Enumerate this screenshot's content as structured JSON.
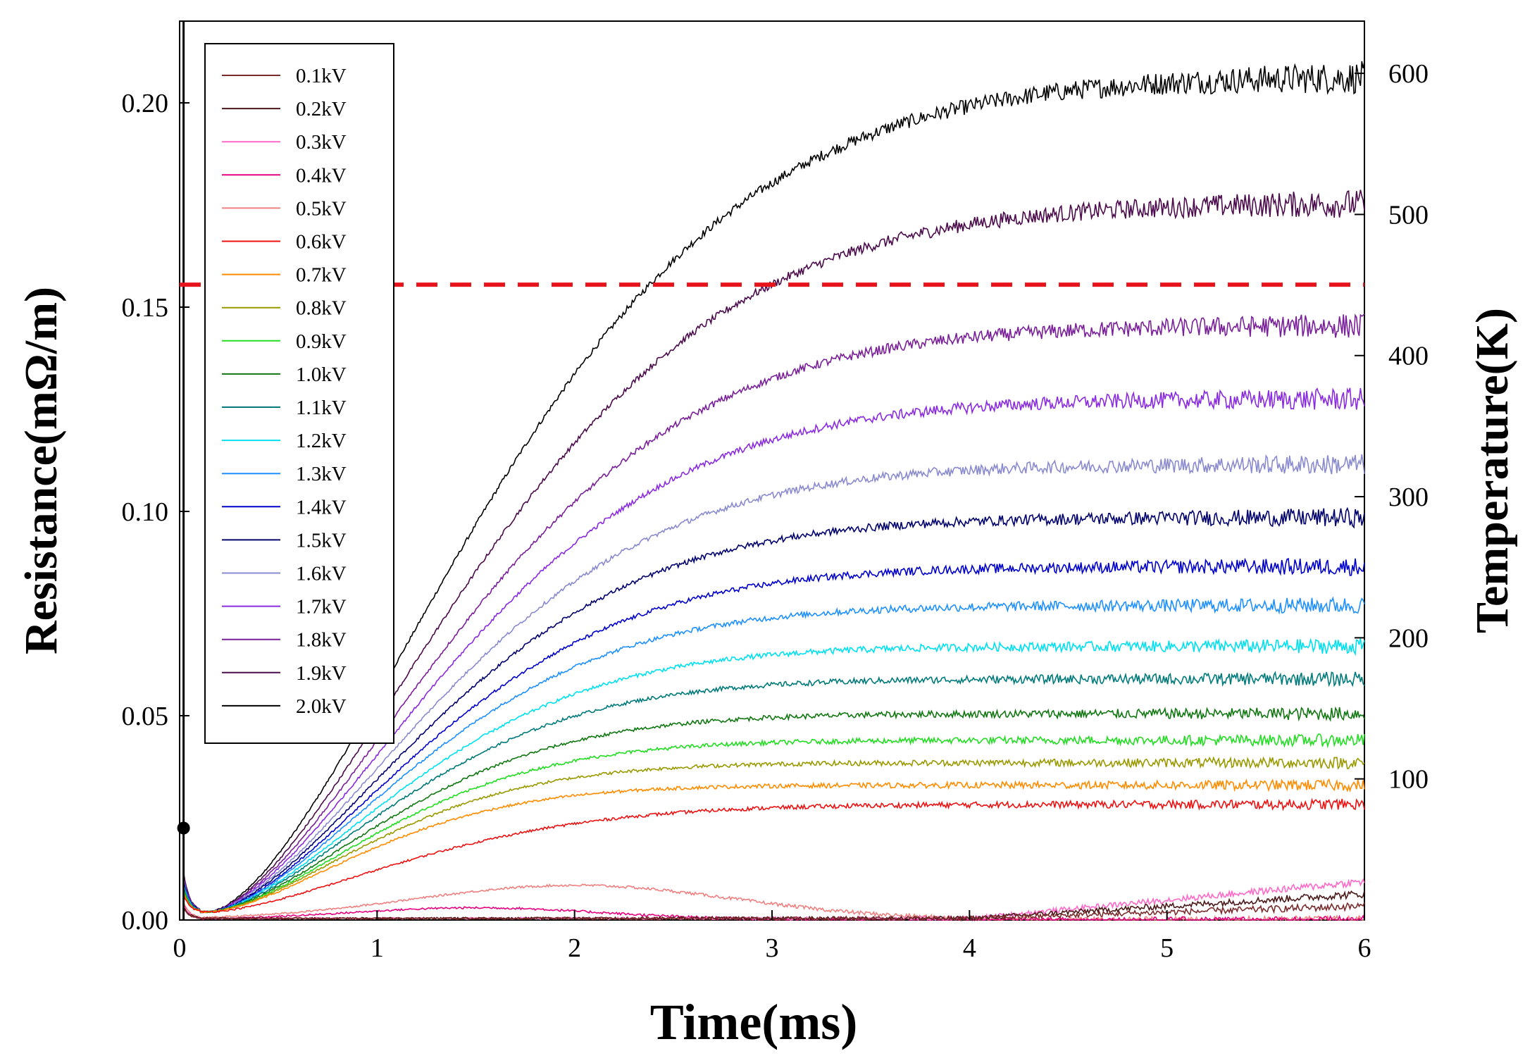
{
  "chart_data": {
    "type": "line",
    "title": "",
    "xlabel": "Time(ms)",
    "ylabel": "Resistance(mΩ/m)",
    "y2label": "Temperature(K)",
    "xlim": [
      0,
      6
    ],
    "ylim": [
      0,
      0.22
    ],
    "y2lim": [
      0,
      637
    ],
    "x_ticks": [
      "0",
      "1",
      "2",
      "3",
      "4",
      "5",
      "6"
    ],
    "y_ticks": [
      "0.00",
      "0.05",
      "0.10",
      "0.15",
      "0.20"
    ],
    "y2_ticks": [
      "100",
      "200",
      "300",
      "400",
      "500",
      "600"
    ],
    "legend_position": "top-left",
    "reference_line": {
      "y": 0.1555,
      "color": "#e8141b",
      "style": "dashed"
    },
    "series": [
      {
        "name": "0.1kV",
        "color": "#7a2c2c",
        "plateau": 0.0,
        "t": 0.0
      },
      {
        "name": "0.2kV",
        "color": "#4a1818",
        "plateau": 0.0,
        "t": 0.0
      },
      {
        "name": "0.3kV",
        "color": "#ff69c8",
        "plateau": 0.0,
        "t": 0.0
      },
      {
        "name": "0.4kV",
        "color": "#e6007e",
        "plateau": 0.003,
        "t": 1.4
      },
      {
        "name": "0.5kV",
        "color": "#f08080",
        "plateau": 0.0085,
        "t": 2.0
      },
      {
        "name": "0.6kV",
        "color": "#ee1111",
        "plateau": 0.0283,
        "t": 2.4
      },
      {
        "name": "0.7kV",
        "color": "#ff8c00",
        "plateau": 0.033,
        "t": 1.9
      },
      {
        "name": "0.8kV",
        "color": "#999900",
        "plateau": 0.0385,
        "t": 2.0
      },
      {
        "name": "0.9kV",
        "color": "#22dd22",
        "plateau": 0.044,
        "t": 2.1
      },
      {
        "name": "1.0kV",
        "color": "#117711",
        "plateau": 0.0505,
        "t": 2.2
      },
      {
        "name": "1.1kV",
        "color": "#007a7a",
        "plateau": 0.059,
        "t": 2.3
      },
      {
        "name": "1.2kV",
        "color": "#00e0f0",
        "plateau": 0.067,
        "t": 2.4
      },
      {
        "name": "1.3kV",
        "color": "#1e90ff",
        "plateau": 0.077,
        "t": 2.5
      },
      {
        "name": "1.4kV",
        "color": "#0000cc",
        "plateau": 0.0865,
        "t": 2.6
      },
      {
        "name": "1.5kV",
        "color": "#00006e",
        "plateau": 0.0985,
        "t": 2.7
      },
      {
        "name": "1.6kV",
        "color": "#8a8ad0",
        "plateau": 0.1115,
        "t": 2.8
      },
      {
        "name": "1.7kV",
        "color": "#8a2be2",
        "plateau": 0.1275,
        "t": 2.9
      },
      {
        "name": "1.8kV",
        "color": "#7a1f9a",
        "plateau": 0.1455,
        "t": 3.0
      },
      {
        "name": "1.9kV",
        "color": "#4b0a4b",
        "plateau": 0.1755,
        "t": 3.2
      },
      {
        "name": "2.0kV",
        "color": "#000000",
        "plateau": 0.2065,
        "t": 3.3
      }
    ]
  }
}
